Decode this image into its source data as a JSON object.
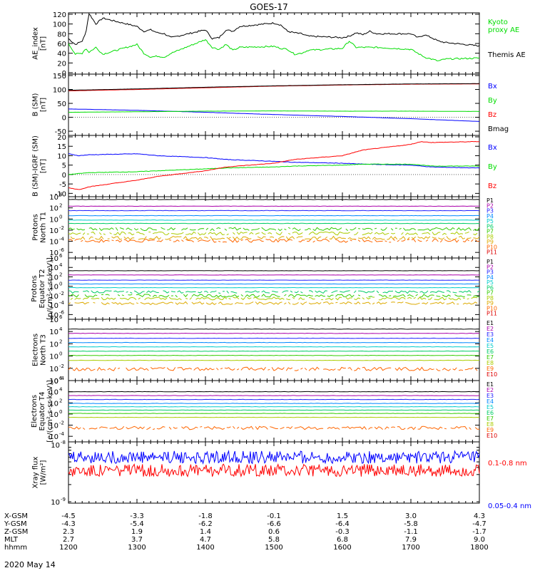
{
  "title": "GOES-17",
  "date_label": "2020 May 14",
  "colors": {
    "black": "#000000",
    "blue": "#0000ff",
    "green": "#00dd00",
    "red": "#ff0000",
    "p_colors": [
      "#000000",
      "#aa00aa",
      "#2222ff",
      "#0088ff",
      "#00cccc",
      "#00cc66",
      "#33cc00",
      "#aacc00",
      "#ddaa00",
      "#ff6600",
      "#dd0000"
    ],
    "e_colors": [
      "#000000",
      "#aa00aa",
      "#2222ff",
      "#0088ff",
      "#00cccc",
      "#00cc66",
      "#33cc00",
      "#aacc00",
      "#ff6600",
      "#dd0000"
    ]
  },
  "chart_data": [
    {
      "type": "line",
      "panel": "ae",
      "ylabel_lines": [
        "AE_index",
        "[nT]"
      ],
      "ylim": [
        0,
        120
      ],
      "yticks": [
        0,
        20,
        40,
        60,
        80,
        100,
        120
      ],
      "legend": [
        {
          "lines": [
            "Kyoto",
            "proxy AE"
          ],
          "color": "green"
        },
        {
          "lines": [
            "Themis AE"
          ],
          "color": "black"
        }
      ],
      "x": [
        1200,
        1210,
        1220,
        1225,
        1230,
        1240,
        1250,
        1300,
        1310,
        1320,
        1330,
        1340,
        1350,
        1400,
        1410,
        1420,
        1430,
        1440,
        1450,
        1500,
        1510,
        1520,
        1530,
        1540,
        1550,
        1600,
        1610,
        1620,
        1630,
        1640,
        1650,
        1700,
        1710,
        1720,
        1730,
        1740,
        1750,
        1800
      ],
      "series": [
        {
          "name": "Themis AE",
          "color": "black",
          "values": [
            70,
            58,
            65,
            80,
            122,
            100,
            112,
            95,
            85,
            88,
            82,
            80,
            72,
            88,
            70,
            72,
            88,
            85,
            95,
            102,
            98,
            85,
            82,
            80,
            75,
            72,
            75,
            82,
            78,
            85,
            80,
            80,
            72,
            78,
            72,
            65,
            62,
            55
          ]
        },
        {
          "name": "Kyoto proxy AE",
          "color": "green",
          "values": [
            60,
            38,
            40,
            50,
            42,
            52,
            38,
            58,
            40,
            32,
            34,
            32,
            40,
            68,
            52,
            48,
            58,
            46,
            52,
            54,
            50,
            48,
            38,
            40,
            46,
            50,
            65,
            52,
            52,
            52,
            52,
            48,
            40,
            32,
            28,
            24,
            28,
            30
          ]
        }
      ]
    },
    {
      "type": "line",
      "panel": "b_sm",
      "ylabel_lines": [
        "B (SM)",
        "[nT]"
      ],
      "ylim": [
        -60,
        150
      ],
      "yticks": [
        -50,
        0,
        50,
        100,
        150
      ],
      "legend": [
        {
          "lines": [
            "Bx"
          ],
          "color": "blue"
        },
        {
          "lines": [
            "By"
          ],
          "color": "green"
        },
        {
          "lines": [
            "Bz"
          ],
          "color": "red"
        },
        {
          "lines": [
            "Bmag"
          ],
          "color": "black"
        }
      ],
      "x": [
        1200,
        1300,
        1400,
        1500,
        1600,
        1700,
        1800
      ],
      "series": [
        {
          "name": "Bx",
          "color": "blue",
          "values": [
            30,
            25,
            18,
            10,
            3,
            -5,
            -15
          ]
        },
        {
          "name": "By",
          "color": "green",
          "values": [
            18,
            20,
            22,
            23,
            22,
            22,
            21
          ]
        },
        {
          "name": "Bz",
          "color": "red",
          "values": [
            95,
            100,
            106,
            112,
            116,
            119,
            120
          ]
        },
        {
          "name": "Bmag",
          "color": "black",
          "values": [
            97,
            102,
            108,
            113,
            117,
            120,
            121
          ]
        }
      ]
    },
    {
      "type": "line",
      "panel": "b_igrf",
      "ylabel_lines": [
        "B (SM)-IGRF (SM)",
        "[nT]"
      ],
      "ylim": [
        -11,
        20
      ],
      "yticks": [
        -10,
        -5,
        0,
        5,
        10,
        15,
        20
      ],
      "legend": [
        {
          "lines": [
            "Bx"
          ],
          "color": "blue"
        },
        {
          "lines": [
            "By"
          ],
          "color": "green"
        },
        {
          "lines": [
            "Bz"
          ],
          "color": "red"
        }
      ],
      "x": [
        1200,
        1215,
        1230,
        1300,
        1330,
        1400,
        1430,
        1500,
        1530,
        1600,
        1630,
        1700,
        1715,
        1730,
        1800
      ],
      "series": [
        {
          "name": "Bx",
          "color": "blue",
          "values": [
            11,
            10,
            10.5,
            11,
            10,
            9,
            8,
            7,
            6.5,
            6,
            5.5,
            5,
            4.5,
            4,
            3.5
          ]
        },
        {
          "name": "By",
          "color": "green",
          "values": [
            0,
            0.5,
            1,
            1.5,
            2,
            3,
            3.5,
            4,
            4.5,
            5,
            5.5,
            5.5,
            5,
            4.5,
            4.5
          ]
        },
        {
          "name": "Bz",
          "color": "red",
          "values": [
            -7,
            -8,
            -6.5,
            -3,
            -1,
            2,
            4,
            6,
            8,
            10,
            13,
            16,
            17.5,
            17,
            17.5
          ]
        }
      ]
    },
    {
      "type": "line",
      "panel": "protons_t1",
      "ylabel_lines": [
        "Protons",
        "North T1"
      ],
      "log": true,
      "ylim_exp": [
        -7,
        4
      ],
      "ytick_exps": [
        4,
        2,
        0,
        -2,
        -4,
        -6
      ],
      "legend_names": [
        "P1",
        "P2",
        "P3",
        "P4",
        "P5",
        "P6",
        "P7",
        "P8",
        "P9",
        "P10",
        "P11"
      ],
      "channel_levels": [
        3.5,
        2.3,
        1.5,
        0.6,
        -0.2,
        -0.8,
        -1.8,
        -2.6,
        -3.4,
        -3.9,
        null
      ]
    },
    {
      "type": "line",
      "panel": "protons_t2",
      "ylabel_lines": [
        "Protons",
        "Equator T2",
        "[p/(cm²-s-sr-keV)]"
      ],
      "log": true,
      "ylim_exp": [
        -7,
        6
      ],
      "ytick_exps": [
        6,
        4,
        2,
        0,
        -2,
        -4,
        -6
      ],
      "legend_names": [
        "P1",
        "P2",
        "P3",
        "P4",
        "P5",
        "P6",
        "P7",
        "P8",
        "P9",
        "P10",
        "P11"
      ],
      "channel_levels": [
        3.3,
        2.4,
        1.3,
        0.5,
        -0.3,
        -1.2,
        -2.0,
        -2.6,
        -3.6,
        null,
        null
      ]
    },
    {
      "type": "line",
      "panel": "electrons_t3",
      "ylabel_lines": [
        "Electrons",
        "North T3"
      ],
      "log": true,
      "ylim_exp": [
        -4,
        6
      ],
      "ytick_exps": [
        6,
        4,
        2,
        0,
        -2,
        -4
      ],
      "legend_names": [
        "E1",
        "E2",
        "E3",
        "E4",
        "E5",
        "E6",
        "E7",
        "E8",
        "E9",
        "E10"
      ],
      "channel_levels": [
        4.4,
        3.7,
        2.9,
        2.2,
        1.5,
        0.8,
        0.1,
        -0.7,
        -2.1,
        null
      ]
    },
    {
      "type": "line",
      "panel": "electrons_t4",
      "ylabel_lines": [
        "Electrons",
        "Equator T4",
        "[e/(cm²-s-sr-keV)]"
      ],
      "log": true,
      "ylim_exp": [
        -5,
        6
      ],
      "ytick_exps": [
        6,
        4,
        2,
        0,
        -2,
        -4
      ],
      "legend_names": [
        "E1",
        "E2",
        "E3",
        "E4",
        "E5",
        "E6",
        "E7",
        "E8",
        "E9",
        "E10"
      ],
      "channel_levels": [
        4.0,
        3.3,
        2.6,
        1.9,
        1.3,
        0.7,
        0.1,
        -0.6,
        -2.5,
        null
      ]
    },
    {
      "type": "line",
      "panel": "xray",
      "ylabel_lines": [
        "Xray flux",
        "[W/m²]"
      ],
      "log": true,
      "ylim_exp": [
        -9,
        -8
      ],
      "ytick_labels": [
        {
          "base": "10",
          "exp": "-8"
        },
        {
          "base": "10",
          "exp": "-9"
        }
      ],
      "legend": [
        {
          "lines": [
            "0.1-0.8 nm"
          ],
          "color": "red"
        },
        {
          "lines": [
            "0.05-0.4 nm"
          ],
          "color": "blue"
        }
      ],
      "series_levels": [
        {
          "name": "0.1-0.8 nm",
          "color": "red",
          "mean_exp": -8.45
        },
        {
          "name": "0.05-0.4 nm",
          "color": "blue",
          "mean_exp": -8.22
        }
      ]
    }
  ],
  "footer": {
    "rows": [
      {
        "label": "X-GSM",
        "values": [
          "-4.5",
          "-3.3",
          "-1.8",
          "-0.1",
          "1.5",
          "3.0",
          "4.3"
        ]
      },
      {
        "label": "Y-GSM",
        "values": [
          "-4.3",
          "-5.4",
          "-6.2",
          "-6.6",
          "-6.4",
          "-5.8",
          "-4.7"
        ]
      },
      {
        "label": "Z-GSM",
        "values": [
          "2.3",
          "1.9",
          "1.4",
          "0.6",
          "-0.3",
          "-1.1",
          "-1.7"
        ]
      },
      {
        "label": "MLT",
        "values": [
          "2.7",
          "3.7",
          "4.7",
          "5.8",
          "6.8",
          "7.9",
          "9.0"
        ]
      },
      {
        "label": "hhmm",
        "values": [
          "1200",
          "1300",
          "1400",
          "1500",
          "1600",
          "1700",
          "1800"
        ]
      }
    ]
  }
}
